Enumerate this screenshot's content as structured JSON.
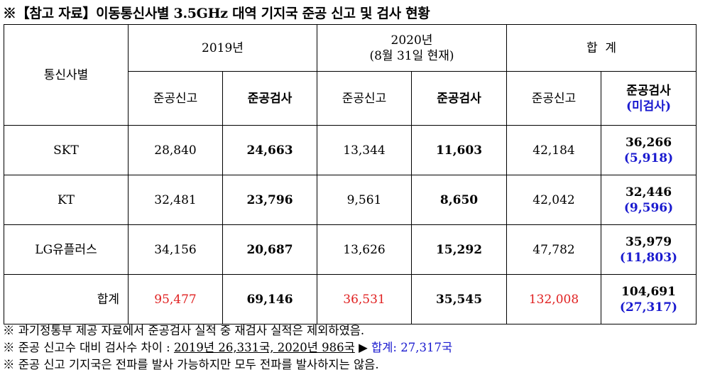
{
  "title": "※【참고 자료】이동통신사별 3.5GHz 대역 기지국 준공 신고 및 검사 현황",
  "header": {
    "carrier": "통신사별",
    "y2019": "2019년",
    "y2020_line1": "2020년",
    "y2020_line2": "(8월 31일 현재)",
    "total": "합  계",
    "report": "준공신고",
    "inspect": "준공검사",
    "uninspected": "(미검사)"
  },
  "rows": [
    {
      "name": "SKT",
      "r2019": "28,840",
      "i2019": "24,663",
      "r2020": "13,344",
      "i2020": "11,603",
      "rTotal": "42,184",
      "iTotal": "36,266",
      "uTotal": "(5,918)"
    },
    {
      "name": "KT",
      "r2019": "32,481",
      "i2019": "23,796",
      "r2020": "9,561",
      "i2020": "8,650",
      "rTotal": "42,042",
      "iTotal": "32,446",
      "uTotal": "(9,596)"
    },
    {
      "name": "LG유플러스",
      "r2019": "34,156",
      "i2019": "20,687",
      "r2020": "13,626",
      "i2020": "15,292",
      "rTotal": "47,782",
      "iTotal": "35,979",
      "uTotal": "(11,803)"
    }
  ],
  "sum": {
    "name": "합계",
    "r2019": "95,477",
    "i2019": "69,146",
    "r2020": "36,531",
    "i2020": "35,545",
    "rTotal": "132,008",
    "iTotal": "104,691",
    "uTotal": "(27,317)"
  },
  "notes": {
    "n1": "※ 과기정통부 제공 자료에서 준공검사 실적 중 재검사 실적은 제외하였음.",
    "n2_prefix": "※ 준공 신고수 대비 검사수 차이 : ",
    "n2_underlined": "2019년 26,331국, 2020년 986국",
    "n2_arrow": " ▶ ",
    "n2_blue": "합계: 27,317국",
    "n3": "※ 준공 신고 기지국은 전파를 발사 가능하지만 모두 전파를 발사하지는 않음."
  },
  "colors": {
    "red": "#e02020",
    "blue": "#1a1acf"
  }
}
